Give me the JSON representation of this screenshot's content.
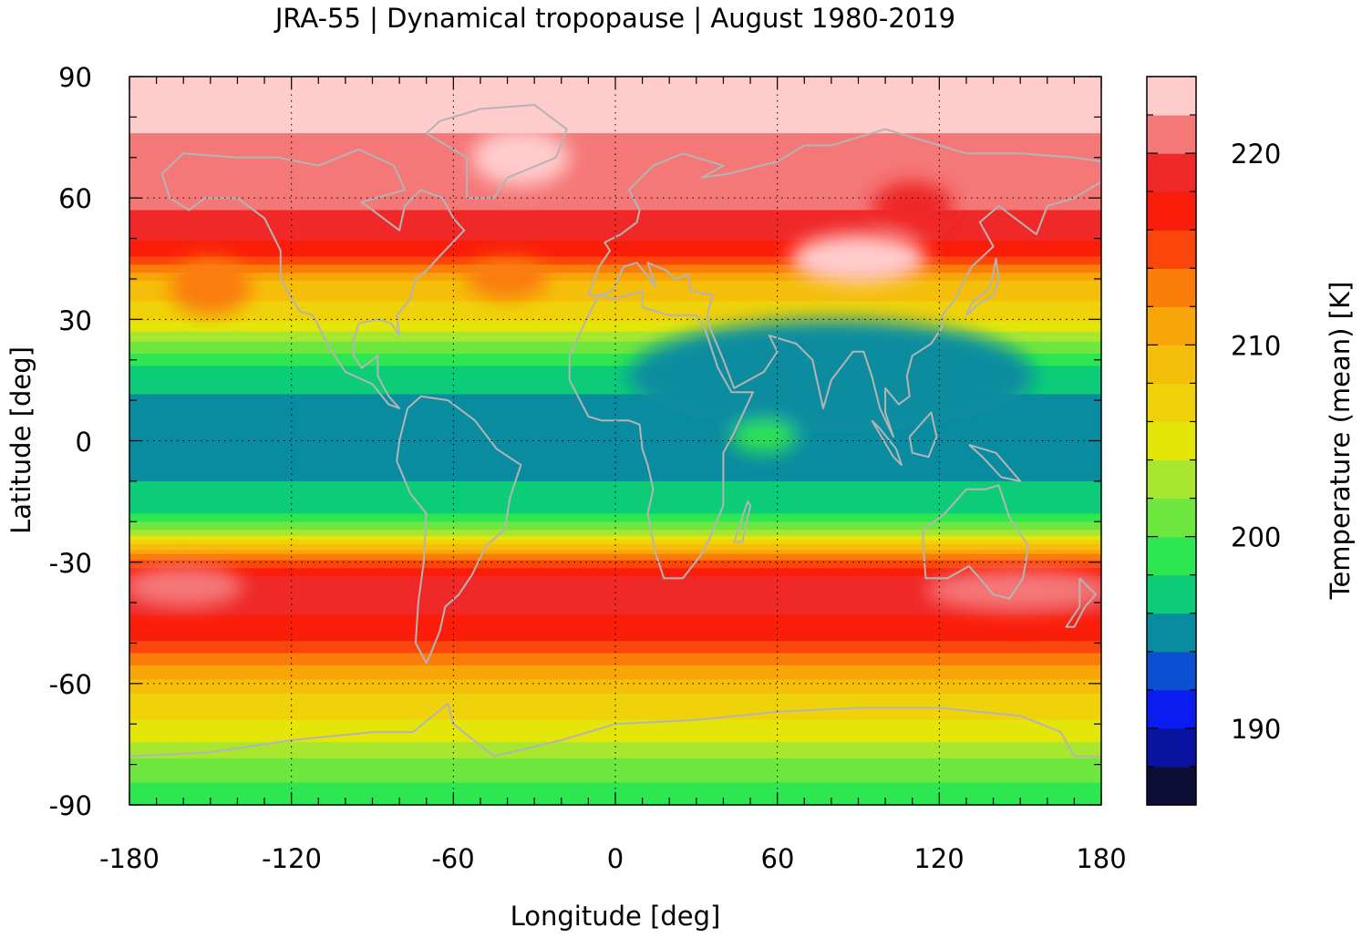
{
  "chart_data": {
    "type": "heatmap",
    "title": "JRA-55 | Dynamical tropopause | August 1980-2019",
    "xlabel": "Longitude [deg]",
    "ylabel": "Latitude [deg]",
    "xlim": [
      -180,
      180
    ],
    "ylim": [
      -90,
      90
    ],
    "x_ticks": [
      -180,
      -120,
      -60,
      0,
      60,
      120,
      180
    ],
    "y_ticks": [
      90,
      60,
      30,
      0,
      -30,
      -60,
      -90
    ],
    "x_tick_labels": [
      "-180",
      "-120",
      "-60",
      "0",
      "60",
      "120",
      "180"
    ],
    "y_tick_labels": [
      "90",
      "60",
      "30",
      "0",
      "-30",
      "-60",
      "-90"
    ],
    "grid": true,
    "colorbar": {
      "label": "Temperature (mean) [K]",
      "range": [
        186,
        224
      ],
      "ticks": [
        190,
        200,
        210,
        220
      ],
      "tick_labels": [
        "190",
        "200",
        "210",
        "220"
      ],
      "placement": "right",
      "levels": [
        {
          "from": 186,
          "to": 188,
          "color": "#0d0d35"
        },
        {
          "from": 188,
          "to": 190,
          "color": "#0a12a0"
        },
        {
          "from": 190,
          "to": 192,
          "color": "#0a1cf0"
        },
        {
          "from": 192,
          "to": 194,
          "color": "#0a50d0"
        },
        {
          "from": 194,
          "to": 196,
          "color": "#0a8ca0"
        },
        {
          "from": 196,
          "to": 198,
          "color": "#0ccc78"
        },
        {
          "from": 198,
          "to": 200,
          "color": "#2ee650"
        },
        {
          "from": 200,
          "to": 202,
          "color": "#6ee640"
        },
        {
          "from": 202,
          "to": 204,
          "color": "#a8e630"
        },
        {
          "from": 204,
          "to": 206,
          "color": "#e4e60a"
        },
        {
          "from": 206,
          "to": 208,
          "color": "#f0d20a"
        },
        {
          "from": 208,
          "to": 210,
          "color": "#f5be0a"
        },
        {
          "from": 210,
          "to": 212,
          "color": "#f8a50a"
        },
        {
          "from": 212,
          "to": 214,
          "color": "#fa7d0a"
        },
        {
          "from": 214,
          "to": 216,
          "color": "#fa460a"
        },
        {
          "from": 216,
          "to": 218,
          "color": "#fa1e0a"
        },
        {
          "from": 218,
          "to": 220,
          "color": "#f02828"
        },
        {
          "from": 220,
          "to": 222,
          "color": "#f57878"
        },
        {
          "from": 222,
          "to": 224,
          "color": "#ffcccc"
        }
      ]
    },
    "zonal_profile": [
      {
        "lat": 90,
        "temp": 223
      },
      {
        "lat": 80,
        "temp": 222.8
      },
      {
        "lat": 72,
        "temp": 221
      },
      {
        "lat": 60,
        "temp": 220.5
      },
      {
        "lat": 52,
        "temp": 219
      },
      {
        "lat": 46,
        "temp": 216
      },
      {
        "lat": 40,
        "temp": 210
      },
      {
        "lat": 30,
        "temp": 206
      },
      {
        "lat": 24,
        "temp": 201.5
      },
      {
        "lat": 18,
        "temp": 197.5
      },
      {
        "lat": 10,
        "temp": 195.5
      },
      {
        "lat": 0,
        "temp": 195.5
      },
      {
        "lat": -10,
        "temp": 196
      },
      {
        "lat": -18,
        "temp": 198
      },
      {
        "lat": -22,
        "temp": 202
      },
      {
        "lat": -26,
        "temp": 209
      },
      {
        "lat": -30,
        "temp": 215
      },
      {
        "lat": -34,
        "temp": 218.5
      },
      {
        "lat": -40,
        "temp": 218.5
      },
      {
        "lat": -48,
        "temp": 217
      },
      {
        "lat": -55,
        "temp": 212
      },
      {
        "lat": -62,
        "temp": 208
      },
      {
        "lat": -72,
        "temp": 205
      },
      {
        "lat": -78,
        "temp": 202
      },
      {
        "lat": -84,
        "temp": 200
      },
      {
        "lat": -90,
        "temp": 199
      }
    ],
    "anomalies": [
      {
        "lon": 90,
        "lat": 18,
        "rx": 20,
        "ry": 9,
        "temp": 193
      },
      {
        "lon": 80,
        "lat": 16,
        "rx": 75,
        "ry": 14,
        "temp": 195
      },
      {
        "lon": 55,
        "lat": 1,
        "rx": 12,
        "ry": 4,
        "temp": 199
      },
      {
        "lon": -160,
        "lat": -36,
        "rx": 22,
        "ry": 5,
        "temp": 221
      },
      {
        "lon": 150,
        "lat": -37,
        "rx": 35,
        "ry": 5,
        "temp": 221
      },
      {
        "lon": -35,
        "lat": 70,
        "rx": 18,
        "ry": 7,
        "temp": 223
      },
      {
        "lon": 90,
        "lat": 45,
        "rx": 25,
        "ry": 6,
        "temp": 223
      },
      {
        "lon": 110,
        "lat": 58,
        "rx": 15,
        "ry": 6,
        "temp": 219
      },
      {
        "lon": -150,
        "lat": 38,
        "rx": 15,
        "ry": 7,
        "temp": 213
      },
      {
        "lon": -40,
        "lat": 40,
        "rx": 15,
        "ry": 5,
        "temp": 213
      }
    ]
  }
}
